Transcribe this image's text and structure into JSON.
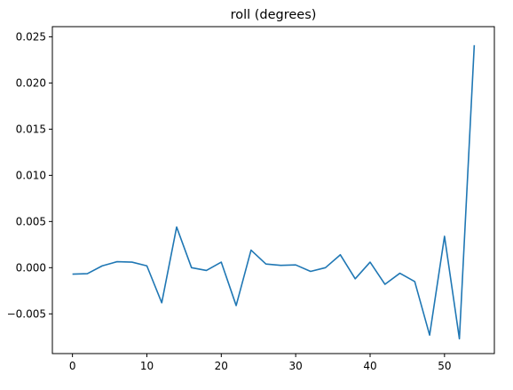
{
  "chart_data": {
    "type": "line",
    "title": "roll (degrees)",
    "xlabel": "",
    "ylabel": "",
    "xlim": [
      -2.7,
      56.7
    ],
    "ylim": [
      -0.0093,
      0.0261
    ],
    "xticks": [
      0,
      10,
      20,
      30,
      40,
      50
    ],
    "xtick_labels": [
      "0",
      "10",
      "20",
      "30",
      "40",
      "50"
    ],
    "yticks": [
      -0.005,
      0.0,
      0.005,
      0.01,
      0.015,
      0.02,
      0.025
    ],
    "ytick_labels": [
      "−0.005",
      "0.000",
      "0.005",
      "0.010",
      "0.015",
      "0.020",
      "0.025"
    ],
    "grid": false,
    "series": [
      {
        "color": "#1f77b4",
        "x": [
          0,
          2,
          4,
          6,
          8,
          10,
          12,
          14,
          16,
          18,
          20,
          22,
          24,
          26,
          28,
          30,
          32,
          34,
          36,
          38,
          40,
          42,
          44,
          46,
          48,
          50,
          52,
          54
        ],
        "y": [
          -0.0007,
          -0.00065,
          0.0002,
          0.00065,
          0.0006,
          0.0002,
          -0.0038,
          0.0044,
          0.0,
          -0.0003,
          0.0006,
          -0.0041,
          0.0019,
          0.0004,
          0.00025,
          0.0003,
          -0.0004,
          0.0,
          0.0014,
          -0.0012,
          0.0006,
          -0.0018,
          -0.0006,
          -0.0015,
          -0.0073,
          0.0034,
          -0.0077,
          0.0241
        ]
      }
    ]
  }
}
